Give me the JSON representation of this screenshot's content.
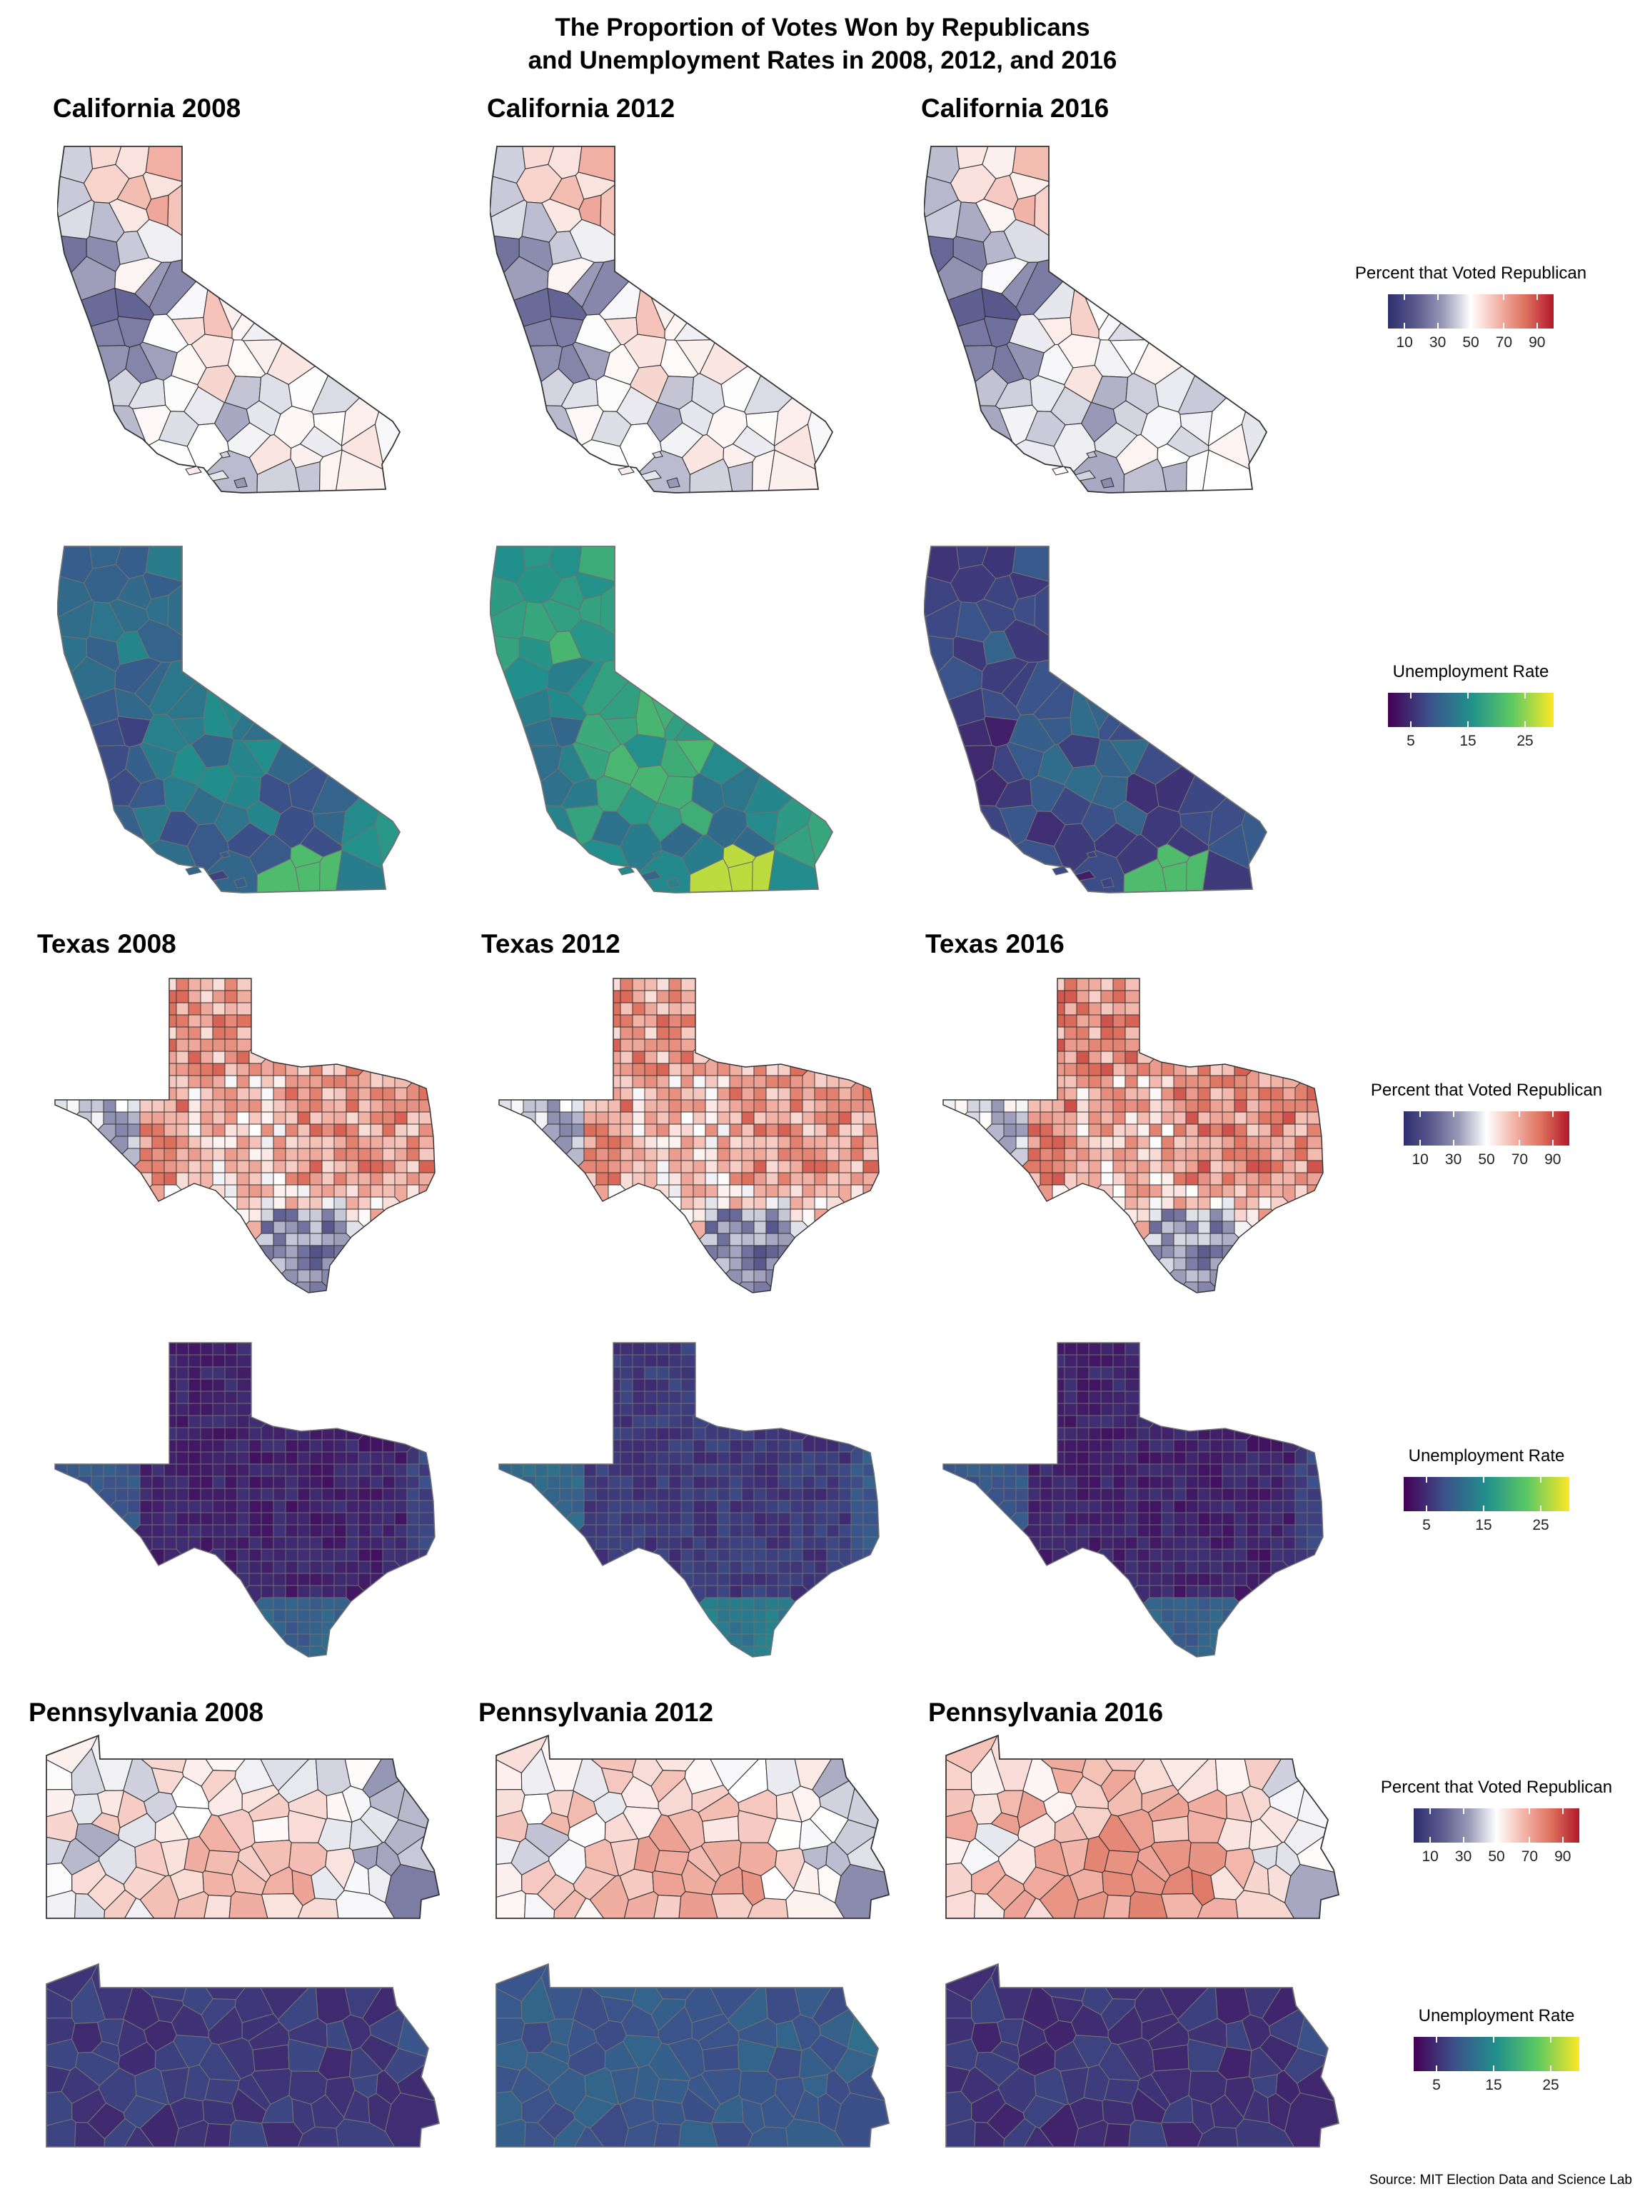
{
  "title_line1": "The Proportion of Votes Won by Republicans",
  "title_line2": "and Unemployment Rates in 2008, 2012, and 2016",
  "source": "Source: MIT Election Data and Science Lab",
  "colors": {
    "republican_scale": [
      "#2e2e6e",
      "#5a5a8e",
      "#9a9ab8",
      "#ffffff",
      "#f2b4a8",
      "#dd6f5c",
      "#b2182b"
    ],
    "unemployment_scale": [
      "#440154",
      "#3b528b",
      "#21908c",
      "#5dc963",
      "#fde725"
    ],
    "border": "#333333",
    "unemployment_border": "#707070"
  },
  "legends": {
    "republican": {
      "title": "Percent that Voted Republican",
      "ticks": [
        "10",
        "30",
        "50",
        "70",
        "90"
      ],
      "tick_values": [
        10,
        30,
        50,
        70,
        90
      ],
      "range": [
        0,
        100
      ]
    },
    "unemployment": {
      "title": "Unemployment Rate",
      "ticks": [
        "5",
        "15",
        "25"
      ],
      "tick_values": [
        5,
        15,
        25
      ],
      "range": [
        1,
        30
      ]
    }
  },
  "chart_data": [
    {
      "type": "choropleth",
      "state": "California",
      "year": "2008",
      "title": "California 2008",
      "variable": "percent_republican",
      "note": "mostly 25-45 coastal, 55-70 northeast interior"
    },
    {
      "type": "choropleth",
      "state": "California",
      "year": "2012",
      "title": "California 2012",
      "variable": "percent_republican"
    },
    {
      "type": "choropleth",
      "state": "California",
      "year": "2016",
      "title": "California 2016",
      "variable": "percent_republican"
    },
    {
      "type": "choropleth",
      "state": "California",
      "year": "2008",
      "variable": "unemployment_rate",
      "note": "Imperial County highest (~21)"
    },
    {
      "type": "choropleth",
      "state": "California",
      "year": "2012",
      "variable": "unemployment_rate",
      "note": "Imperial County highest (~27)"
    },
    {
      "type": "choropleth",
      "state": "California",
      "year": "2016",
      "variable": "unemployment_rate",
      "note": "Imperial County highest (~21)"
    },
    {
      "type": "choropleth",
      "state": "Texas",
      "year": "2008",
      "title": "Texas 2008",
      "variable": "percent_republican"
    },
    {
      "type": "choropleth",
      "state": "Texas",
      "year": "2012",
      "title": "Texas 2012",
      "variable": "percent_republican"
    },
    {
      "type": "choropleth",
      "state": "Texas",
      "year": "2016",
      "title": "Texas 2016",
      "variable": "percent_republican"
    },
    {
      "type": "choropleth",
      "state": "Texas",
      "year": "2008",
      "variable": "unemployment_rate"
    },
    {
      "type": "choropleth",
      "state": "Texas",
      "year": "2012",
      "variable": "unemployment_rate"
    },
    {
      "type": "choropleth",
      "state": "Texas",
      "year": "2016",
      "variable": "unemployment_rate"
    },
    {
      "type": "choropleth",
      "state": "Pennsylvania",
      "year": "2008",
      "title": "Pennsylvania 2008",
      "variable": "percent_republican"
    },
    {
      "type": "choropleth",
      "state": "Pennsylvania",
      "year": "2012",
      "title": "Pennsylvania 2012",
      "variable": "percent_republican"
    },
    {
      "type": "choropleth",
      "state": "Pennsylvania",
      "year": "2016",
      "title": "Pennsylvania 2016",
      "variable": "percent_republican"
    },
    {
      "type": "choropleth",
      "state": "Pennsylvania",
      "year": "2008",
      "variable": "unemployment_rate"
    },
    {
      "type": "choropleth",
      "state": "Pennsylvania",
      "year": "2012",
      "variable": "unemployment_rate"
    },
    {
      "type": "choropleth",
      "state": "Pennsylvania",
      "year": "2016",
      "variable": "unemployment_rate"
    }
  ],
  "panel_titles": {
    "ca2008": "California 2008",
    "ca2012": "California 2012",
    "ca2016": "California 2016",
    "tx2008": "Texas 2008",
    "tx2012": "Texas 2012",
    "tx2016": "Texas 2016",
    "pa2008": "Pennsylvania 2008",
    "pa2012": "Pennsylvania 2012",
    "pa2016": "Pennsylvania 2016"
  }
}
